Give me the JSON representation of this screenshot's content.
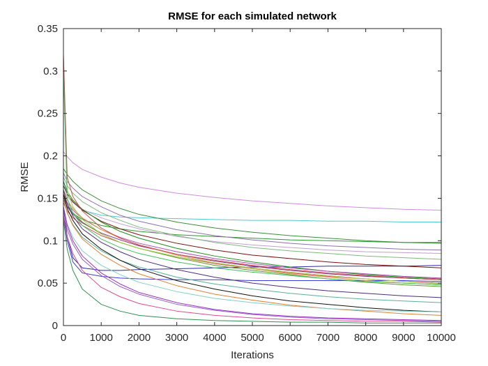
{
  "chart_data": {
    "type": "line",
    "title": "RMSE for each simulated network",
    "xlabel": "Iterations",
    "ylabel": "RMSE",
    "xlim": [
      0,
      10000
    ],
    "ylim": [
      0,
      0.35
    ],
    "x_ticks": [
      0,
      1000,
      2000,
      3000,
      4000,
      5000,
      6000,
      7000,
      8000,
      9000,
      10000
    ],
    "y_ticks": [
      0,
      0.05,
      0.1,
      0.15,
      0.2,
      0.25,
      0.3,
      0.35
    ],
    "x_tick_labels": [
      "0",
      "1000",
      "2000",
      "3000",
      "4000",
      "5000",
      "6000",
      "7000",
      "8000",
      "9000",
      "10000"
    ],
    "y_tick_labels": [
      "0",
      "0.05",
      "0.1",
      "0.15",
      "0.2",
      "0.25",
      "0.3",
      "0.35"
    ],
    "grid": false,
    "legend": "none",
    "x": [
      0,
      100,
      250,
      500,
      1000,
      1500,
      2000,
      3000,
      4000,
      5000,
      6000,
      7000,
      8000,
      9000,
      10000
    ],
    "series": [
      {
        "color": "#d18be0",
        "values": [
          0.205,
          0.199,
          0.192,
          0.184,
          0.175,
          0.168,
          0.163,
          0.156,
          0.151,
          0.147,
          0.144,
          0.141,
          0.139,
          0.137,
          0.136
        ]
      },
      {
        "color": "#4fc9d6",
        "values": [
          0.17,
          0.155,
          0.145,
          0.136,
          0.13,
          0.128,
          0.127,
          0.126,
          0.125,
          0.124,
          0.124,
          0.123,
          0.123,
          0.122,
          0.122
        ]
      },
      {
        "color": "#3a8f3a",
        "values": [
          0.185,
          0.178,
          0.17,
          0.16,
          0.147,
          0.138,
          0.131,
          0.122,
          0.115,
          0.11,
          0.106,
          0.103,
          0.1,
          0.098,
          0.097
        ]
      },
      {
        "color": "#2a9a2a",
        "values": [
          0.15,
          0.14,
          0.132,
          0.125,
          0.118,
          0.114,
          0.111,
          0.107,
          0.105,
          0.103,
          0.101,
          0.1,
          0.099,
          0.098,
          0.098
        ]
      },
      {
        "color": "#8f6fb0",
        "values": [
          0.18,
          0.17,
          0.162,
          0.152,
          0.14,
          0.13,
          0.123,
          0.113,
          0.106,
          0.101,
          0.097,
          0.094,
          0.092,
          0.09,
          0.089
        ]
      },
      {
        "color": "#c0a0d0",
        "values": [
          0.16,
          0.152,
          0.145,
          0.137,
          0.127,
          0.12,
          0.114,
          0.105,
          0.099,
          0.095,
          0.092,
          0.089,
          0.087,
          0.086,
          0.085
        ]
      },
      {
        "color": "#7fb87f",
        "values": [
          0.175,
          0.165,
          0.156,
          0.146,
          0.133,
          0.124,
          0.116,
          0.106,
          0.098,
          0.092,
          0.088,
          0.085,
          0.082,
          0.08,
          0.078
        ]
      },
      {
        "color": "#2a2aa8",
        "values": [
          0.14,
          0.105,
          0.08,
          0.068,
          0.065,
          0.065,
          0.066,
          0.067,
          0.068,
          0.069,
          0.069,
          0.07,
          0.07,
          0.07,
          0.071
        ]
      },
      {
        "color": "#3a3ad8",
        "values": [
          0.13,
          0.1,
          0.075,
          0.062,
          0.058,
          0.056,
          0.055,
          0.054,
          0.054,
          0.053,
          0.053,
          0.053,
          0.053,
          0.053,
          0.052
        ]
      },
      {
        "color": "#7a1010",
        "values": [
          0.165,
          0.155,
          0.146,
          0.136,
          0.123,
          0.114,
          0.107,
          0.097,
          0.089,
          0.083,
          0.079,
          0.075,
          0.072,
          0.07,
          0.068
        ]
      },
      {
        "color": "#1a8f1a",
        "values": [
          0.17,
          0.158,
          0.148,
          0.137,
          0.122,
          0.111,
          0.103,
          0.091,
          0.082,
          0.075,
          0.069,
          0.064,
          0.06,
          0.057,
          0.055
        ]
      },
      {
        "color": "#b050b0",
        "values": [
          0.155,
          0.145,
          0.136,
          0.126,
          0.113,
          0.104,
          0.097,
          0.087,
          0.079,
          0.073,
          0.068,
          0.064,
          0.061,
          0.058,
          0.056
        ]
      },
      {
        "color": "#8a2a8a",
        "values": [
          0.15,
          0.14,
          0.131,
          0.121,
          0.109,
          0.101,
          0.094,
          0.084,
          0.076,
          0.07,
          0.065,
          0.061,
          0.058,
          0.056,
          0.054
        ]
      },
      {
        "color": "#e05050",
        "values": [
          0.145,
          0.135,
          0.127,
          0.118,
          0.106,
          0.098,
          0.091,
          0.081,
          0.073,
          0.067,
          0.062,
          0.058,
          0.055,
          0.052,
          0.05
        ]
      },
      {
        "color": "#d2a050",
        "values": [
          0.16,
          0.148,
          0.138,
          0.127,
          0.113,
          0.103,
          0.095,
          0.083,
          0.074,
          0.067,
          0.061,
          0.057,
          0.053,
          0.05,
          0.048
        ]
      },
      {
        "color": "#5a9a2a",
        "values": [
          0.155,
          0.143,
          0.133,
          0.122,
          0.108,
          0.098,
          0.091,
          0.08,
          0.071,
          0.065,
          0.06,
          0.055,
          0.051,
          0.048,
          0.046
        ]
      },
      {
        "color": "#4a2a80",
        "values": [
          0.16,
          0.143,
          0.129,
          0.114,
          0.098,
          0.087,
          0.078,
          0.066,
          0.057,
          0.05,
          0.045,
          0.041,
          0.038,
          0.035,
          0.033
        ]
      },
      {
        "color": "#5ab09a",
        "values": [
          0.15,
          0.133,
          0.119,
          0.104,
          0.088,
          0.077,
          0.069,
          0.057,
          0.049,
          0.043,
          0.038,
          0.034,
          0.031,
          0.029,
          0.027
        ]
      },
      {
        "color": "#101010",
        "values": [
          0.155,
          0.138,
          0.124,
          0.108,
          0.09,
          0.077,
          0.067,
          0.053,
          0.043,
          0.035,
          0.029,
          0.025,
          0.021,
          0.018,
          0.016
        ]
      },
      {
        "color": "#e08030",
        "values": [
          0.15,
          0.133,
          0.118,
          0.102,
          0.084,
          0.071,
          0.061,
          0.047,
          0.037,
          0.03,
          0.024,
          0.02,
          0.017,
          0.014,
          0.012
        ]
      },
      {
        "color": "#7fd0c0",
        "values": [
          0.14,
          0.12,
          0.104,
          0.088,
          0.071,
          0.06,
          0.051,
          0.04,
          0.032,
          0.027,
          0.023,
          0.02,
          0.018,
          0.017,
          0.016
        ]
      },
      {
        "color": "#a030c0",
        "values": [
          0.14,
          0.118,
          0.1,
          0.082,
          0.062,
          0.049,
          0.039,
          0.027,
          0.019,
          0.014,
          0.011,
          0.009,
          0.008,
          0.007,
          0.006
        ]
      },
      {
        "color": "#9060d0",
        "values": [
          0.135,
          0.113,
          0.096,
          0.078,
          0.059,
          0.046,
          0.037,
          0.025,
          0.018,
          0.013,
          0.01,
          0.008,
          0.007,
          0.006,
          0.005
        ]
      },
      {
        "color": "#e04a90",
        "values": [
          0.13,
          0.105,
          0.085,
          0.065,
          0.045,
          0.034,
          0.026,
          0.017,
          0.012,
          0.009,
          0.007,
          0.006,
          0.005,
          0.005,
          0.004
        ]
      },
      {
        "color": "#2f8f4f",
        "values": [
          0.125,
          0.09,
          0.065,
          0.043,
          0.025,
          0.017,
          0.012,
          0.008,
          0.006,
          0.005,
          0.004,
          0.004,
          0.003,
          0.003,
          0.003
        ]
      },
      {
        "color": "#a0d050",
        "values": [
          0.32,
          0.16,
          0.14,
          0.125,
          0.108,
          0.098,
          0.091,
          0.081,
          0.074,
          0.068,
          0.063,
          0.059,
          0.055,
          0.052,
          0.049
        ]
      },
      {
        "color": "#d05050",
        "values": [
          0.32,
          0.175,
          0.152,
          0.135,
          0.115,
          0.103,
          0.095,
          0.084,
          0.077,
          0.071,
          0.066,
          0.062,
          0.059,
          0.056,
          0.054
        ]
      },
      {
        "color": "#40c060",
        "values": [
          0.3,
          0.15,
          0.132,
          0.118,
          0.102,
          0.092,
          0.085,
          0.075,
          0.068,
          0.063,
          0.059,
          0.055,
          0.052,
          0.05,
          0.048
        ]
      }
    ]
  }
}
